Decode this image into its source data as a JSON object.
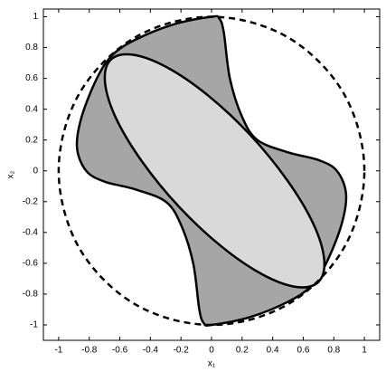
{
  "chart_data": {
    "type": "closed-curves",
    "xlabel": "x₁",
    "ylabel": "x₂",
    "xlim": [
      -1.1,
      1.1
    ],
    "ylim": [
      -1.1,
      1.05
    ],
    "xticks": [
      -1,
      -0.8,
      -0.6,
      -0.4,
      -0.2,
      0,
      0.2,
      0.4,
      0.6,
      0.8,
      1
    ],
    "yticks": [
      -1,
      -0.8,
      -0.6,
      -0.4,
      -0.2,
      0,
      0.2,
      0.4,
      0.6,
      0.8,
      1
    ],
    "grid": false,
    "series": [
      {
        "color": "#a6a6a6",
        "dashed": false,
        "x": [
          0.05,
          0.08,
          0.12,
          0.2,
          0.3,
          0.5,
          0.7,
          0.82,
          0.88,
          0.85,
          0.75,
          0.65,
          0.5,
          0.25,
          0,
          -0.05,
          -0.08,
          -0.12,
          -0.2,
          -0.3,
          -0.5,
          -0.7,
          -0.82,
          -0.88,
          -0.85,
          -0.75,
          -0.65,
          -0.5,
          -0.25,
          0
        ],
        "y": [
          0.99,
          0.9,
          0.6,
          0.35,
          0.2,
          0.12,
          0.07,
          0.0,
          -0.15,
          -0.35,
          -0.6,
          -0.75,
          -0.85,
          -0.95,
          -1.0,
          -0.99,
          -0.9,
          -0.6,
          -0.35,
          -0.2,
          -0.12,
          -0.07,
          0.0,
          0.15,
          0.35,
          0.6,
          0.75,
          0.85,
          0.95,
          1.0
        ]
      },
      {
        "color": "#d9d9d9",
        "dashed": false,
        "x": [
          0.7,
          0.737,
          0.666,
          0.495,
          0.253,
          -0.025,
          -0.296,
          -0.519,
          -0.66,
          -0.697,
          -0.626,
          -0.455,
          -0.213,
          0.065,
          0.336,
          0.559
        ],
        "y": [
          -0.72,
          -0.576,
          -0.344,
          -0.061,
          0.233,
          0.491,
          0.674,
          0.754,
          0.72,
          0.576,
          0.344,
          0.061,
          -0.233,
          -0.491,
          -0.674,
          -0.754
        ]
      },
      {
        "color": "none",
        "dashed": true,
        "x": [
          1,
          0.866,
          0.5,
          0,
          -0.5,
          -0.866,
          -1,
          -0.866,
          -0.5,
          0,
          0.5,
          0.866
        ],
        "y": [
          0,
          0.5,
          0.866,
          1,
          0.866,
          0.5,
          0,
          -0.5,
          -0.866,
          -1,
          -0.866,
          -0.5
        ]
      }
    ]
  }
}
